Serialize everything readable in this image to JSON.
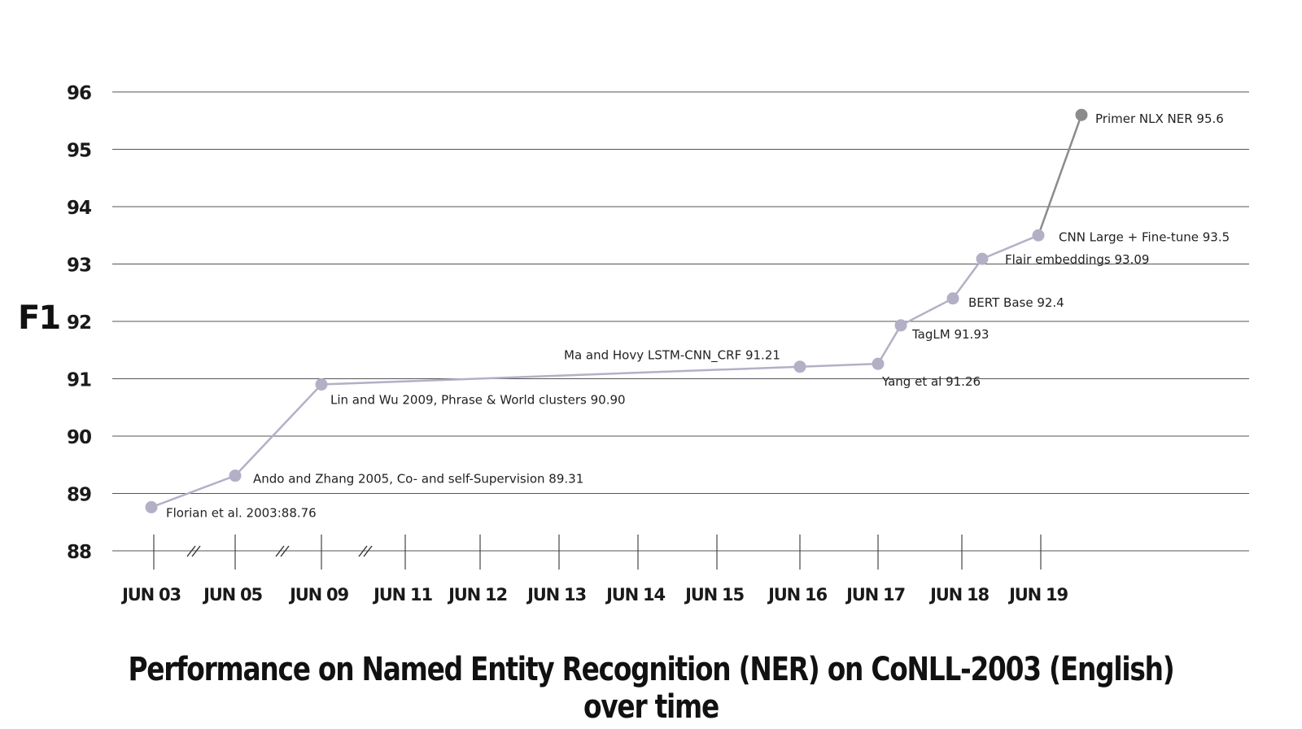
{
  "chart_data": {
    "type": "line",
    "title": "Performance on Named Entity Recognition (NER) on CoNLL-2003 (English) over time",
    "ylabel": "F1",
    "xlabel": "",
    "ylim": [
      88,
      96
    ],
    "yticks": [
      88,
      89,
      90,
      91,
      92,
      93,
      94,
      95,
      96
    ],
    "xticks": [
      "JUN 03",
      "JUN 05",
      "JUN 09",
      "JUN 11",
      "JUN 12",
      "JUN 13",
      "JUN 14",
      "JUN 15",
      "JUN 16",
      "JUN 17",
      "JUN 18",
      "JUN 19"
    ],
    "axis_breaks": "between JUN 03–JUN 05, JUN 05–JUN 09, JUN 09–JUN 11",
    "grid": true,
    "colors": {
      "line": "#b3b0c6",
      "point": "#b3b0c6",
      "highlight_line": "#8b8b8b",
      "highlight_point": "#8b8b8b",
      "grid": "#555555"
    },
    "series": [
      {
        "points": [
          {
            "x": "JUN 03",
            "y": 88.76,
            "label": "Florian et al. 2003:88.76"
          },
          {
            "x": "JUN 05",
            "y": 89.31,
            "label": "Ando and Zhang 2005, Co- and self-Supervision 89.31"
          },
          {
            "x": "JUN 09",
            "y": 90.9,
            "label": "Lin and Wu 2009, Phrase & World clusters 90.90"
          },
          {
            "x": "JUN 16",
            "y": 91.21,
            "label": "Ma and Hovy LSTM-CNN_CRF 91.21"
          },
          {
            "x": "JUN 17",
            "y": 91.26,
            "label": "Yang et al 91.26"
          },
          {
            "x": "JUN 17",
            "y": 91.93,
            "label": "TagLM 91.93"
          },
          {
            "x": "JUN 18",
            "y": 92.4,
            "label": "BERT Base 92.4"
          },
          {
            "x": "JUN 18",
            "y": 93.09,
            "label": "Flair embeddings 93.09"
          },
          {
            "x": "JUN 19",
            "y": 93.5,
            "label": "CNN Large + Fine-tune 93.5"
          },
          {
            "x": "JUN 19",
            "y": 95.6,
            "label": "Primer NLX NER 95.6",
            "highlight": true
          }
        ]
      }
    ]
  }
}
